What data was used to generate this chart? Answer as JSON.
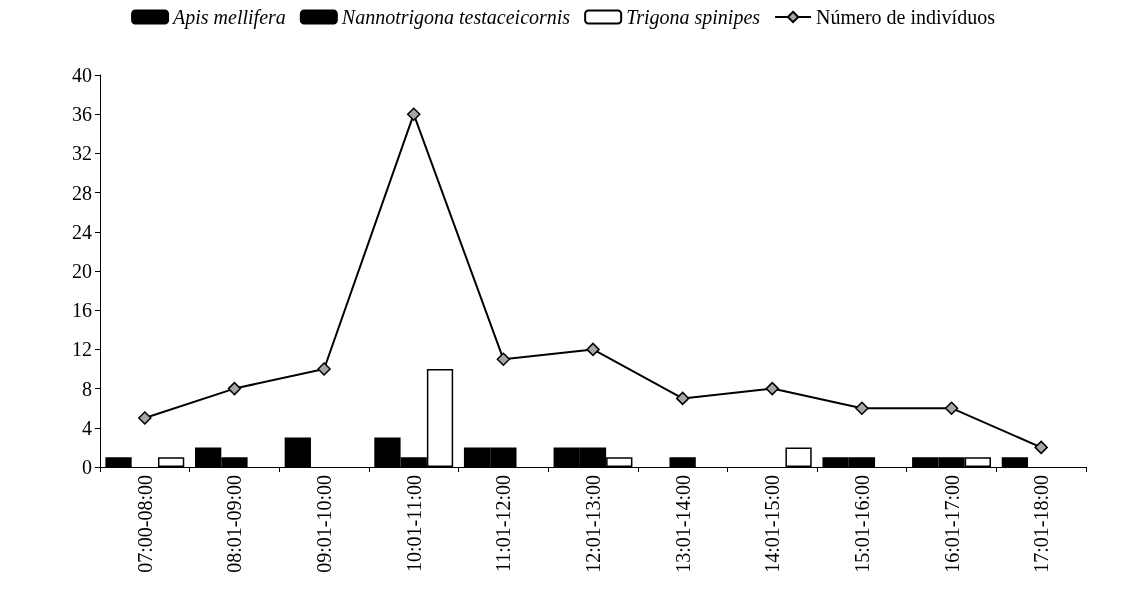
{
  "chart_data": {
    "type": "bar",
    "categories": [
      "07:00-08:00",
      "08:01-09:00",
      "09:01-10:00",
      "10:01-11:00",
      "11:01-12:00",
      "12:01-13:00",
      "13:01-14:00",
      "14:01-15:00",
      "15:01-16:00",
      "16:01-17:00",
      "17:01-18:00"
    ],
    "series": [
      {
        "name": "Apis mellifera",
        "color": "#000000",
        "values": [
          1,
          2,
          3,
          3,
          2,
          2,
          0,
          0,
          1,
          1,
          1
        ]
      },
      {
        "name": "Nannotrigona testaceicornis",
        "color": "#000000",
        "values": [
          0,
          1,
          0,
          1,
          2,
          2,
          1,
          0,
          1,
          1,
          0
        ]
      },
      {
        "name": "Trigona spinipes",
        "color": "#ffffff",
        "values": [
          1,
          0,
          0,
          10,
          0,
          1,
          0,
          2,
          0,
          1,
          0
        ]
      },
      {
        "name": "Número de indivíduos",
        "type": "line",
        "color": "#a6a6a6",
        "values": [
          5,
          8,
          10,
          36,
          11,
          12,
          7,
          8,
          6,
          6,
          2
        ],
        "marker": "diamond",
        "line_style": "solid"
      }
    ],
    "ylim": [
      0,
      40
    ],
    "yticks": [
      0,
      4,
      8,
      12,
      16,
      20,
      24,
      28,
      32,
      36,
      40
    ],
    "grid": false,
    "legend": "top"
  }
}
